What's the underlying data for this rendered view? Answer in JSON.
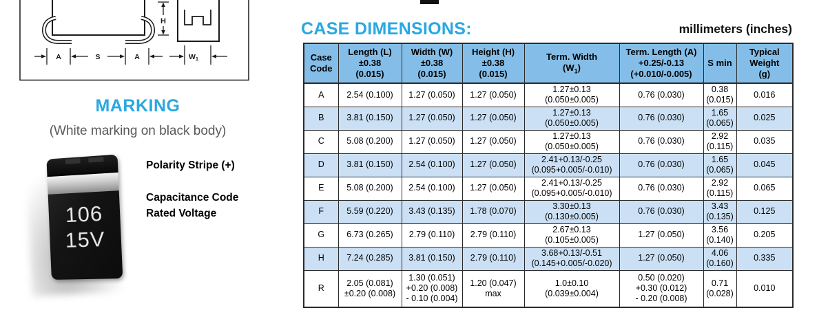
{
  "colors": {
    "accent_cyan": "#29A8E0",
    "table_header_blue": "#84BEE8",
    "table_row_alt_blue": "#CBE0F4"
  },
  "drawing": {
    "labels": {
      "h": "H",
      "a_left": "A",
      "s": "S",
      "a_right": "A",
      "w1_base": "W",
      "w1_sub": "1"
    }
  },
  "marking": {
    "title": "MARKING",
    "subtitle": "(White marking on black body)",
    "chip": {
      "line1": "106",
      "line2": "15V"
    },
    "labels": {
      "polarity": "Polarity Stripe (+)",
      "capacitance": "Capacitance Code",
      "voltage": "Rated Voltage"
    }
  },
  "case_dimensions": {
    "title": "CASE DIMENSIONS:",
    "units_note": "millimeters (inches)",
    "table": {
      "headers": {
        "case_code": "Case\nCode",
        "length": "Length (L)\n±0.38\n(0.015)",
        "width": "Width (W)\n±0.38\n(0.015)",
        "height": "Height (H)\n±0.38\n(0.015)",
        "term_width_l1": "Term. Width",
        "term_width_l2a": "(W",
        "term_width_sub": "1",
        "term_width_l2b": ")",
        "term_length": "Term. Length (A)\n+0.25/-0.13\n(+0.010/-0.005)",
        "s_min": "S min",
        "typical_weight": "Typical\nWeight\n(g)"
      },
      "rows": [
        {
          "case_code": "A",
          "length": "2.54 (0.100)",
          "width": "1.27 (0.050)",
          "height": "1.27 (0.050)",
          "term_width": "1.27±0.13\n(0.050±0.005)",
          "term_length": "0.76 (0.030)",
          "s_min": "0.38\n(0.015)",
          "weight": "0.016"
        },
        {
          "case_code": "B",
          "length": "3.81 (0.150)",
          "width": "1.27 (0.050)",
          "height": "1.27 (0.050)",
          "term_width": "1.27±0.13\n(0.050±0.005)",
          "term_length": "0.76 (0.030)",
          "s_min": "1.65\n(0.065)",
          "weight": "0.025"
        },
        {
          "case_code": "C",
          "length": "5.08 (0.200)",
          "width": "1.27 (0.050)",
          "height": "1.27 (0.050)",
          "term_width": "1.27±0.13\n(0.050±0.005)",
          "term_length": "0.76 (0.030)",
          "s_min": "2.92\n(0.115)",
          "weight": "0.035"
        },
        {
          "case_code": "D",
          "length": "3.81 (0.150)",
          "width": "2.54 (0.100)",
          "height": "1.27 (0.050)",
          "term_width": "2.41+0.13/-0.25\n(0.095+0.005/-0.010)",
          "term_length": "0.76 (0.030)",
          "s_min": "1.65\n(0.065)",
          "weight": "0.045"
        },
        {
          "case_code": "E",
          "length": "5.08 (0.200)",
          "width": "2.54 (0.100)",
          "height": "1.27 (0.050)",
          "term_width": "2.41+0.13/-0.25\n(0.095+0.005/-0.010)",
          "term_length": "0.76 (0.030)",
          "s_min": "2.92\n(0.115)",
          "weight": "0.065"
        },
        {
          "case_code": "F",
          "length": "5.59 (0.220)",
          "width": "3.43 (0.135)",
          "height": "1.78 (0.070)",
          "term_width": "3.30±0.13\n(0.130±0.005)",
          "term_length": "0.76 (0.030)",
          "s_min": "3.43\n(0.135)",
          "weight": "0.125"
        },
        {
          "case_code": "G",
          "length": "6.73 (0.265)",
          "width": "2.79 (0.110)",
          "height": "2.79 (0.110)",
          "term_width": "2.67±0.13\n(0.105±0.005)",
          "term_length": "1.27 (0.050)",
          "s_min": "3.56\n(0.140)",
          "weight": "0.205"
        },
        {
          "case_code": "H",
          "length": "7.24 (0.285)",
          "width": "3.81 (0.150)",
          "height": "2.79 (0.110)",
          "term_width": "3.68+0.13/-0.51\n(0.145+0.005/-0.020)",
          "term_length": "1.27 (0.050)",
          "s_min": "4.06\n(0.160)",
          "weight": "0.335"
        },
        {
          "case_code": "R",
          "length": "2.05 (0.081)\n±0.20 (0.008)",
          "width": "1.30 (0.051)\n+0.20 (0.008)\n- 0.10 (0.004)",
          "height": "1.20 (0.047)\nmax",
          "term_width": "1.0±0.10\n(0.039±0.004)",
          "term_length": "0.50 (0.020)\n+0.30 (0.012)\n- 0.20 (0.008)",
          "s_min": "0.71\n(0.028)",
          "weight": "0.010"
        }
      ]
    }
  }
}
